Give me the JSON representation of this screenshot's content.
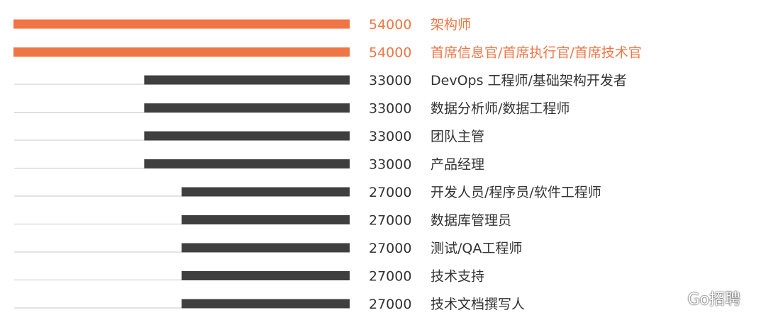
{
  "chart_data": {
    "type": "bar",
    "orientation": "horizontal",
    "title": "",
    "xlabel": "",
    "ylabel": "",
    "xlim": [
      0,
      54000
    ],
    "categories": [
      "架构师",
      "首席信息官/首席执行官/首席技术官",
      "DevOps 工程师/基础架构开发者",
      "数据分析师/数据工程师",
      "团队主管",
      "产品经理",
      "开发人员/程序员/软件工程师",
      "数据库管理员",
      "测试/QA工程师",
      "技术支持",
      "技术文档撰写人"
    ],
    "values": [
      54000,
      54000,
      33000,
      33000,
      33000,
      33000,
      27000,
      27000,
      27000,
      27000,
      27000
    ],
    "value_labels": [
      "54000",
      "54000",
      "33000",
      "33000",
      "33000",
      "33000",
      "27000",
      "27000",
      "27000",
      "27000",
      "27000"
    ],
    "highlighted": [
      true,
      true,
      false,
      false,
      false,
      false,
      false,
      false,
      false,
      false,
      false
    ],
    "colors": {
      "highlight": "#f07544",
      "bar": "#3f3f3f",
      "track": "#c8c8c8",
      "text": "#333333"
    },
    "grid": false,
    "legend": "none"
  },
  "watermark": {
    "text": "Go招聘",
    "icon": "wechat-icon"
  }
}
